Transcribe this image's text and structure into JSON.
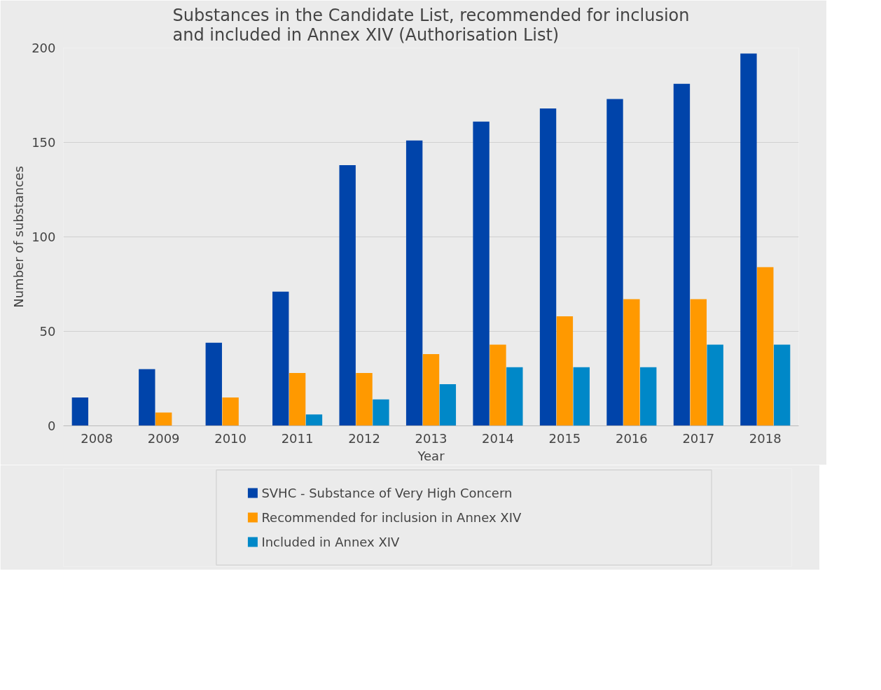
{
  "chart_data": {
    "type": "bar",
    "title": "Substances in the Candidate List, recommended for inclusion\nand included in Annex XIV (Authorisation List)",
    "xlabel": "Year",
    "ylabel": "Number of substances",
    "categories": [
      "2008",
      "2009",
      "2010",
      "2011",
      "2012",
      "2013",
      "2014",
      "2015",
      "2016",
      "2017",
      "2018"
    ],
    "series": [
      {
        "name": "SVHC - Substance of Very High Concern",
        "color": "#0044aa",
        "values": [
          15,
          30,
          44,
          71,
          138,
          151,
          161,
          168,
          173,
          181,
          197
        ]
      },
      {
        "name": "Recommended for inclusion in Annex XIV",
        "color": "#ff9900",
        "values": [
          0,
          7,
          15,
          28,
          28,
          38,
          43,
          58,
          67,
          67,
          84
        ]
      },
      {
        "name": "Included in Annex XIV",
        "color": "#0088c8",
        "values": [
          0,
          0,
          0,
          6,
          14,
          22,
          31,
          31,
          31,
          43,
          43
        ]
      }
    ],
    "ylim": [
      0,
      200
    ],
    "yticks": [
      0,
      50,
      100,
      150,
      200
    ],
    "grid": "y",
    "legend": "bottom"
  }
}
